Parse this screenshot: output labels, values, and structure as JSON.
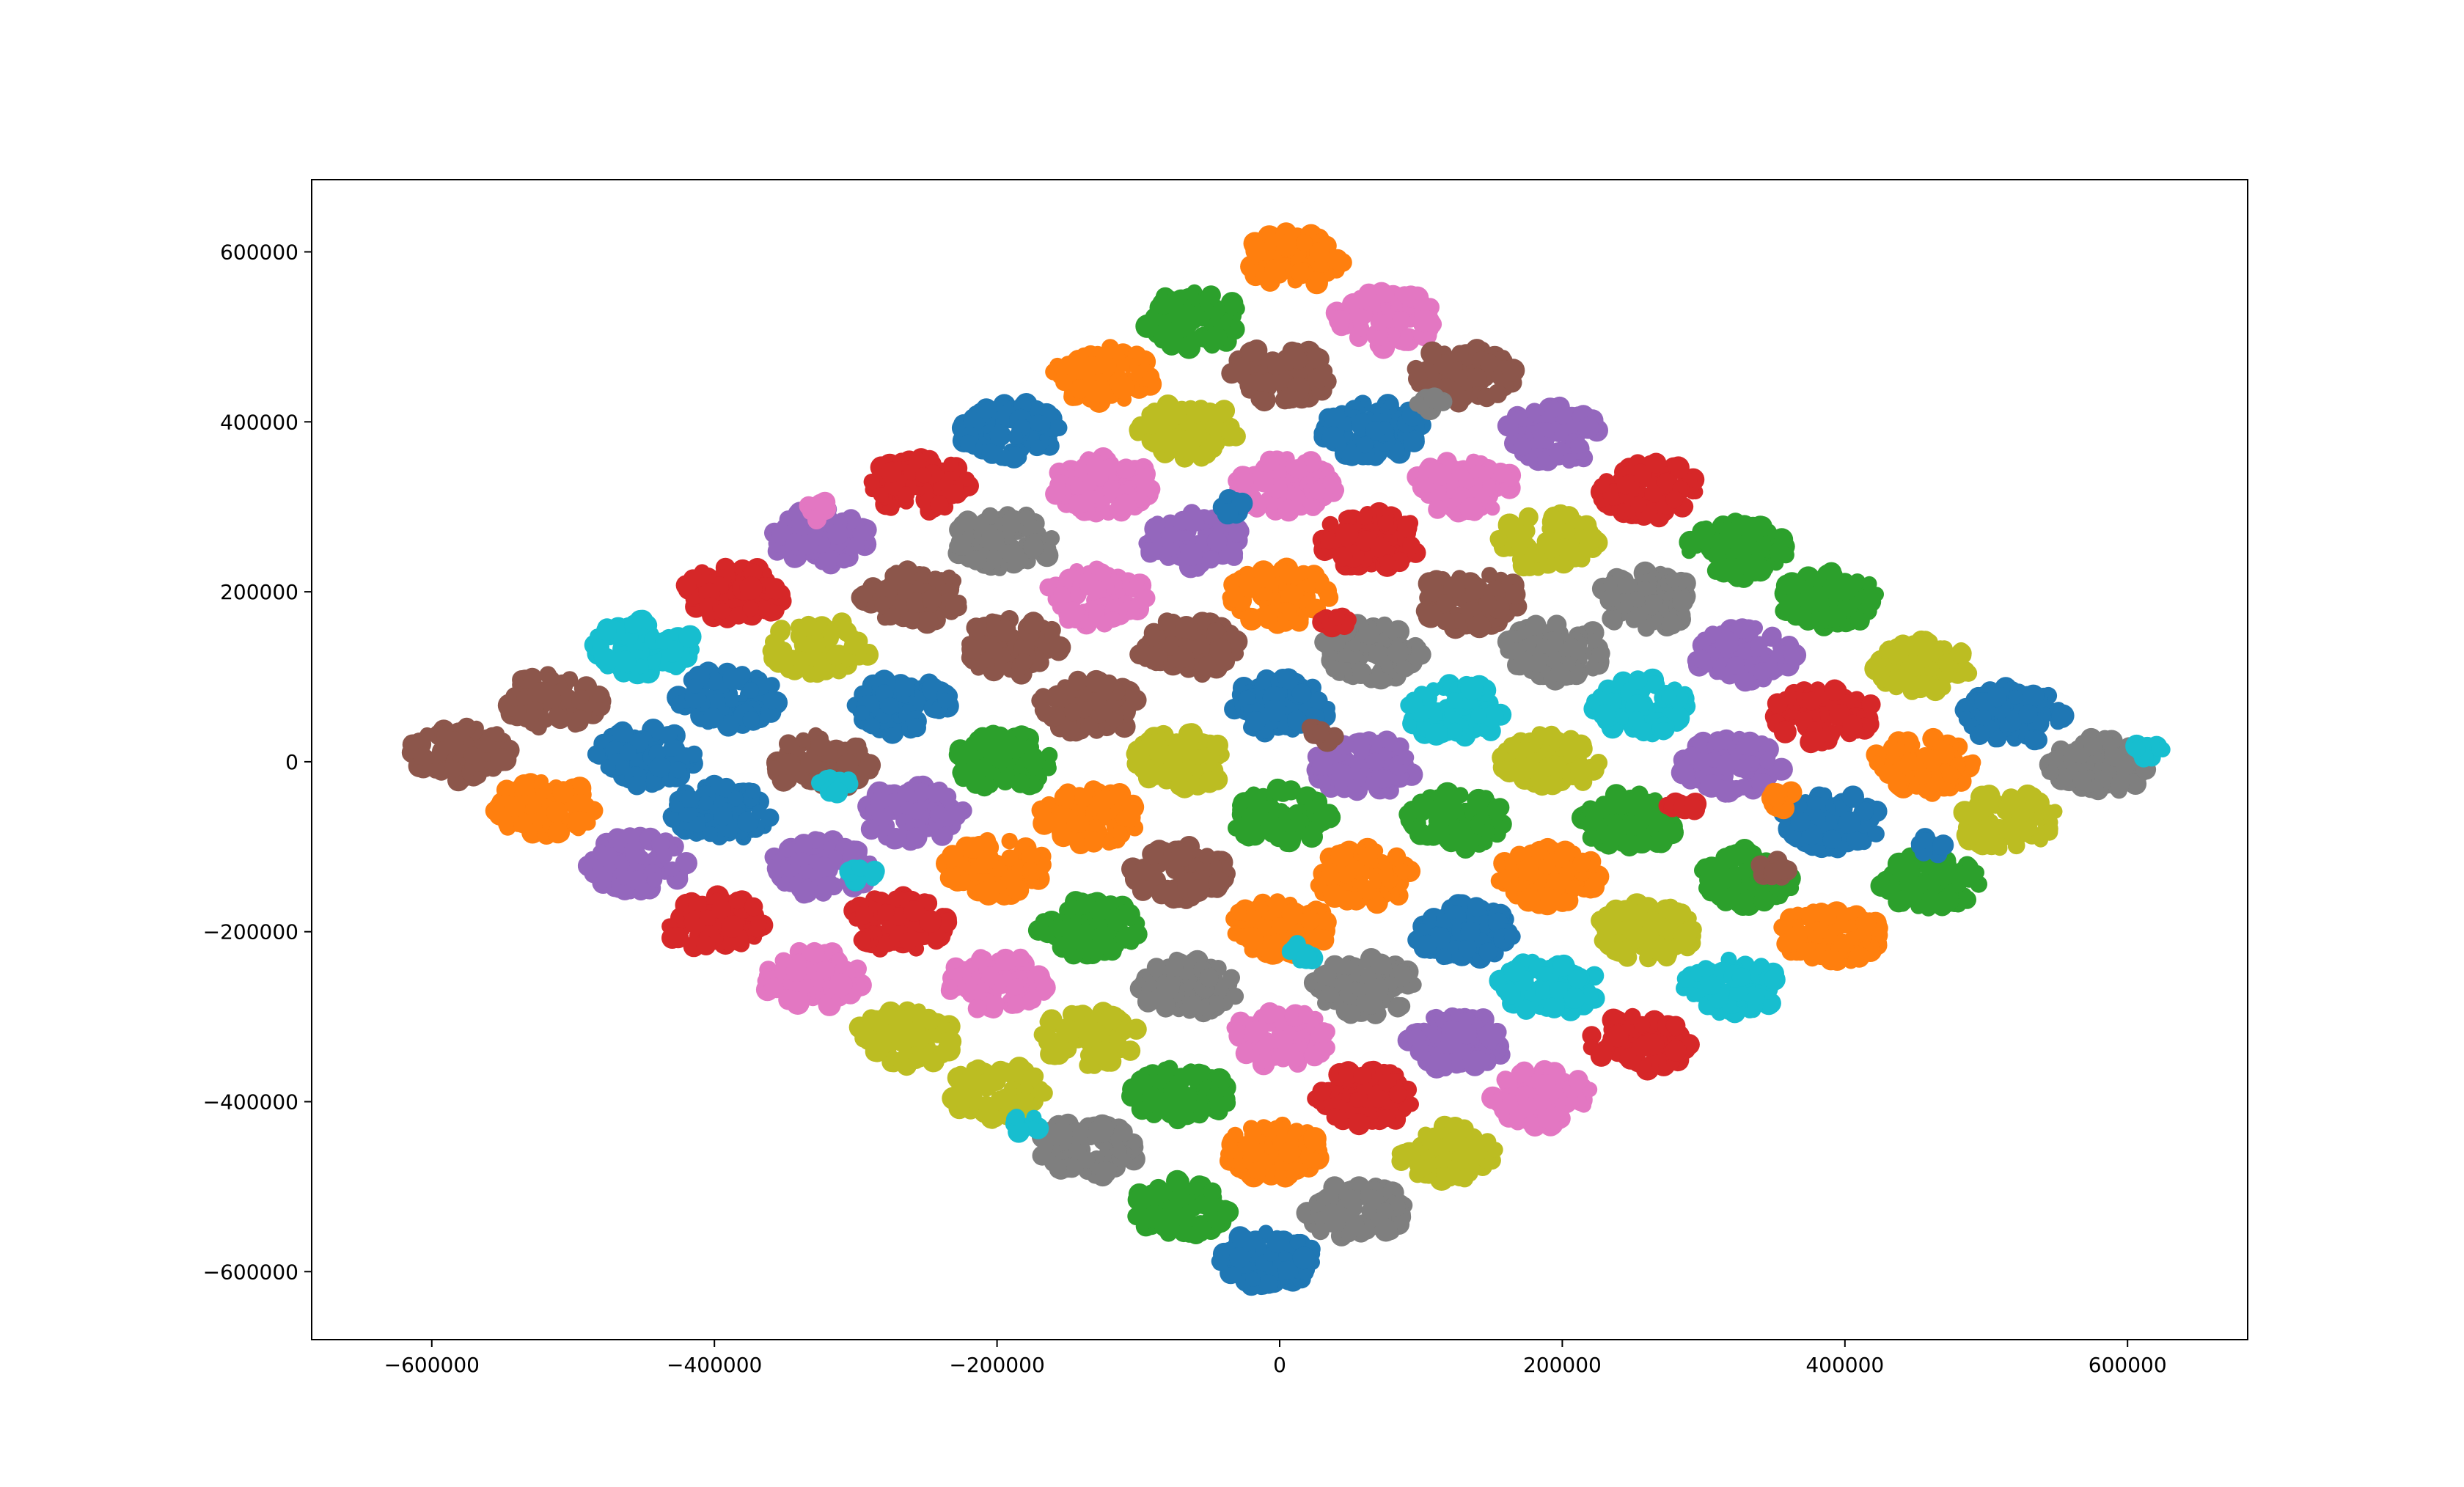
{
  "chart_data": {
    "type": "scatter",
    "title": "",
    "xlabel": "",
    "ylabel": "",
    "xlim": [
      -685000,
      685000
    ],
    "ylim": [
      -680000,
      685000
    ],
    "grid": false,
    "legend": "none",
    "x_ticks": [
      {
        "value": -600000,
        "label": "−600000"
      },
      {
        "value": -400000,
        "label": "−400000"
      },
      {
        "value": -200000,
        "label": "−200000"
      },
      {
        "value": 0,
        "label": "0"
      },
      {
        "value": 200000,
        "label": "200000"
      },
      {
        "value": 400000,
        "label": "400000"
      },
      {
        "value": 600000,
        "label": "600000"
      }
    ],
    "y_ticks": [
      {
        "value": 600000,
        "label": "600000"
      },
      {
        "value": 400000,
        "label": "400000"
      },
      {
        "value": 200000,
        "label": "200000"
      },
      {
        "value": 0,
        "label": "0"
      },
      {
        "value": -200000,
        "label": "−200000"
      },
      {
        "value": -400000,
        "label": "−400000"
      },
      {
        "value": -600000,
        "label": "−600000"
      }
    ],
    "palette": {
      "blue": "#1f77b4",
      "orange": "#ff7f0e",
      "green": "#2ca02c",
      "red": "#d62728",
      "purple": "#9467bd",
      "brown": "#8c564b",
      "pink": "#e377c2",
      "gray": "#7f7f7f",
      "olive": "#bcbd22",
      "cyan": "#17becf"
    },
    "clusters": [
      {
        "x": 10000,
        "y": 590000,
        "color": "orange"
      },
      {
        "x": -60000,
        "y": 520000,
        "color": "green"
      },
      {
        "x": 75000,
        "y": 520000,
        "color": "pink"
      },
      {
        "x": -125000,
        "y": 455000,
        "color": "orange"
      },
      {
        "x": 0,
        "y": 455000,
        "color": "brown"
      },
      {
        "x": 130000,
        "y": 455000,
        "color": "brown"
      },
      {
        "x": -190000,
        "y": 390000,
        "color": "blue"
      },
      {
        "x": -65000,
        "y": 390000,
        "color": "olive"
      },
      {
        "x": 65000,
        "y": 390000,
        "color": "blue"
      },
      {
        "x": 195000,
        "y": 385000,
        "color": "purple"
      },
      {
        "x": -255000,
        "y": 325000,
        "color": "red"
      },
      {
        "x": -125000,
        "y": 325000,
        "color": "pink"
      },
      {
        "x": 5000,
        "y": 325000,
        "color": "pink"
      },
      {
        "x": 130000,
        "y": 325000,
        "color": "pink"
      },
      {
        "x": 260000,
        "y": 320000,
        "color": "red"
      },
      {
        "x": -325000,
        "y": 265000,
        "color": "purple"
      },
      {
        "x": -195000,
        "y": 260000,
        "color": "gray"
      },
      {
        "x": -60000,
        "y": 260000,
        "color": "purple"
      },
      {
        "x": 65000,
        "y": 260000,
        "color": "red"
      },
      {
        "x": 190000,
        "y": 260000,
        "color": "olive"
      },
      {
        "x": 325000,
        "y": 250000,
        "color": "green"
      },
      {
        "x": -385000,
        "y": 200000,
        "color": "red"
      },
      {
        "x": -260000,
        "y": 195000,
        "color": "brown"
      },
      {
        "x": -130000,
        "y": 195000,
        "color": "pink"
      },
      {
        "x": 0,
        "y": 195000,
        "color": "orange"
      },
      {
        "x": 135000,
        "y": 190000,
        "color": "brown"
      },
      {
        "x": 260000,
        "y": 190000,
        "color": "gray"
      },
      {
        "x": 390000,
        "y": 190000,
        "color": "green"
      },
      {
        "x": -450000,
        "y": 135000,
        "color": "cyan"
      },
      {
        "x": -325000,
        "y": 135000,
        "color": "olive"
      },
      {
        "x": -190000,
        "y": 135000,
        "color": "brown"
      },
      {
        "x": -65000,
        "y": 135000,
        "color": "brown"
      },
      {
        "x": 65000,
        "y": 130000,
        "color": "gray"
      },
      {
        "x": 195000,
        "y": 130000,
        "color": "gray"
      },
      {
        "x": 330000,
        "y": 125000,
        "color": "purple"
      },
      {
        "x": 455000,
        "y": 115000,
        "color": "olive"
      },
      {
        "x": -515000,
        "y": 70000,
        "color": "brown"
      },
      {
        "x": -390000,
        "y": 75000,
        "color": "blue"
      },
      {
        "x": -265000,
        "y": 65000,
        "color": "blue"
      },
      {
        "x": -135000,
        "y": 65000,
        "color": "brown"
      },
      {
        "x": 0,
        "y": 65000,
        "color": "blue"
      },
      {
        "x": 125000,
        "y": 60000,
        "color": "cyan"
      },
      {
        "x": 255000,
        "y": 65000,
        "color": "cyan"
      },
      {
        "x": 385000,
        "y": 55000,
        "color": "red"
      },
      {
        "x": 520000,
        "y": 55000,
        "color": "blue"
      },
      {
        "x": -580000,
        "y": 10000,
        "color": "brown"
      },
      {
        "x": -450000,
        "y": 5000,
        "color": "blue"
      },
      {
        "x": -325000,
        "y": 0,
        "color": "brown"
      },
      {
        "x": -195000,
        "y": 0,
        "color": "green"
      },
      {
        "x": -70000,
        "y": 0,
        "color": "olive"
      },
      {
        "x": 60000,
        "y": -5000,
        "color": "purple"
      },
      {
        "x": 190000,
        "y": 0,
        "color": "olive"
      },
      {
        "x": 320000,
        "y": -5000,
        "color": "purple"
      },
      {
        "x": 455000,
        "y": -5000,
        "color": "orange"
      },
      {
        "x": 580000,
        "y": -5000,
        "color": "gray"
      },
      {
        "x": -520000,
        "y": -55000,
        "color": "orange"
      },
      {
        "x": -395000,
        "y": -60000,
        "color": "blue"
      },
      {
        "x": -260000,
        "y": -60000,
        "color": "purple"
      },
      {
        "x": -135000,
        "y": -65000,
        "color": "orange"
      },
      {
        "x": 0,
        "y": -65000,
        "color": "green"
      },
      {
        "x": 125000,
        "y": -70000,
        "color": "green"
      },
      {
        "x": 250000,
        "y": -70000,
        "color": "green"
      },
      {
        "x": 390000,
        "y": -70000,
        "color": "blue"
      },
      {
        "x": 515000,
        "y": -70000,
        "color": "olive"
      },
      {
        "x": -455000,
        "y": -120000,
        "color": "purple"
      },
      {
        "x": -325000,
        "y": -125000,
        "color": "purple"
      },
      {
        "x": -200000,
        "y": -125000,
        "color": "orange"
      },
      {
        "x": -70000,
        "y": -130000,
        "color": "brown"
      },
      {
        "x": 60000,
        "y": -135000,
        "color": "orange"
      },
      {
        "x": 190000,
        "y": -135000,
        "color": "orange"
      },
      {
        "x": 330000,
        "y": -135000,
        "color": "green"
      },
      {
        "x": 460000,
        "y": -140000,
        "color": "green"
      },
      {
        "x": -400000,
        "y": -190000,
        "color": "red"
      },
      {
        "x": -270000,
        "y": -190000,
        "color": "red"
      },
      {
        "x": -135000,
        "y": -195000,
        "color": "green"
      },
      {
        "x": 0,
        "y": -195000,
        "color": "orange"
      },
      {
        "x": 130000,
        "y": -200000,
        "color": "blue"
      },
      {
        "x": 260000,
        "y": -200000,
        "color": "olive"
      },
      {
        "x": 390000,
        "y": -205000,
        "color": "orange"
      },
      {
        "x": -330000,
        "y": -255000,
        "color": "pink"
      },
      {
        "x": -200000,
        "y": -260000,
        "color": "pink"
      },
      {
        "x": -65000,
        "y": -265000,
        "color": "gray"
      },
      {
        "x": 60000,
        "y": -265000,
        "color": "gray"
      },
      {
        "x": 190000,
        "y": -265000,
        "color": "cyan"
      },
      {
        "x": 320000,
        "y": -265000,
        "color": "cyan"
      },
      {
        "x": -265000,
        "y": -325000,
        "color": "olive"
      },
      {
        "x": -135000,
        "y": -325000,
        "color": "olive"
      },
      {
        "x": 0,
        "y": -325000,
        "color": "pink"
      },
      {
        "x": 125000,
        "y": -330000,
        "color": "purple"
      },
      {
        "x": 255000,
        "y": -330000,
        "color": "red"
      },
      {
        "x": -200000,
        "y": -390000,
        "color": "olive"
      },
      {
        "x": -70000,
        "y": -390000,
        "color": "green"
      },
      {
        "x": 60000,
        "y": -395000,
        "color": "red"
      },
      {
        "x": 185000,
        "y": -395000,
        "color": "pink"
      },
      {
        "x": -135000,
        "y": -455000,
        "color": "gray"
      },
      {
        "x": -5000,
        "y": -460000,
        "color": "orange"
      },
      {
        "x": 120000,
        "y": -460000,
        "color": "olive"
      },
      {
        "x": -70000,
        "y": -525000,
        "color": "green"
      },
      {
        "x": 55000,
        "y": -530000,
        "color": "gray"
      },
      {
        "x": -10000,
        "y": -585000,
        "color": "blue"
      }
    ],
    "fragments": [
      {
        "x": -325000,
        "y": 295000,
        "color": "pink"
      },
      {
        "x": -35000,
        "y": 300000,
        "color": "blue"
      },
      {
        "x": 40000,
        "y": 160000,
        "color": "red"
      },
      {
        "x": -315000,
        "y": -25000,
        "color": "cyan"
      },
      {
        "x": -295000,
        "y": -130000,
        "color": "cyan"
      },
      {
        "x": 15000,
        "y": -225000,
        "color": "cyan"
      },
      {
        "x": -180000,
        "y": -425000,
        "color": "cyan"
      },
      {
        "x": 285000,
        "y": -50000,
        "color": "red"
      },
      {
        "x": 355000,
        "y": -45000,
        "color": "orange"
      },
      {
        "x": 350000,
        "y": -125000,
        "color": "brown"
      },
      {
        "x": 615000,
        "y": 15000,
        "color": "cyan"
      },
      {
        "x": 460000,
        "y": -100000,
        "color": "blue"
      },
      {
        "x": 30000,
        "y": 35000,
        "color": "brown"
      },
      {
        "x": 105000,
        "y": 425000,
        "color": "gray"
      }
    ]
  }
}
